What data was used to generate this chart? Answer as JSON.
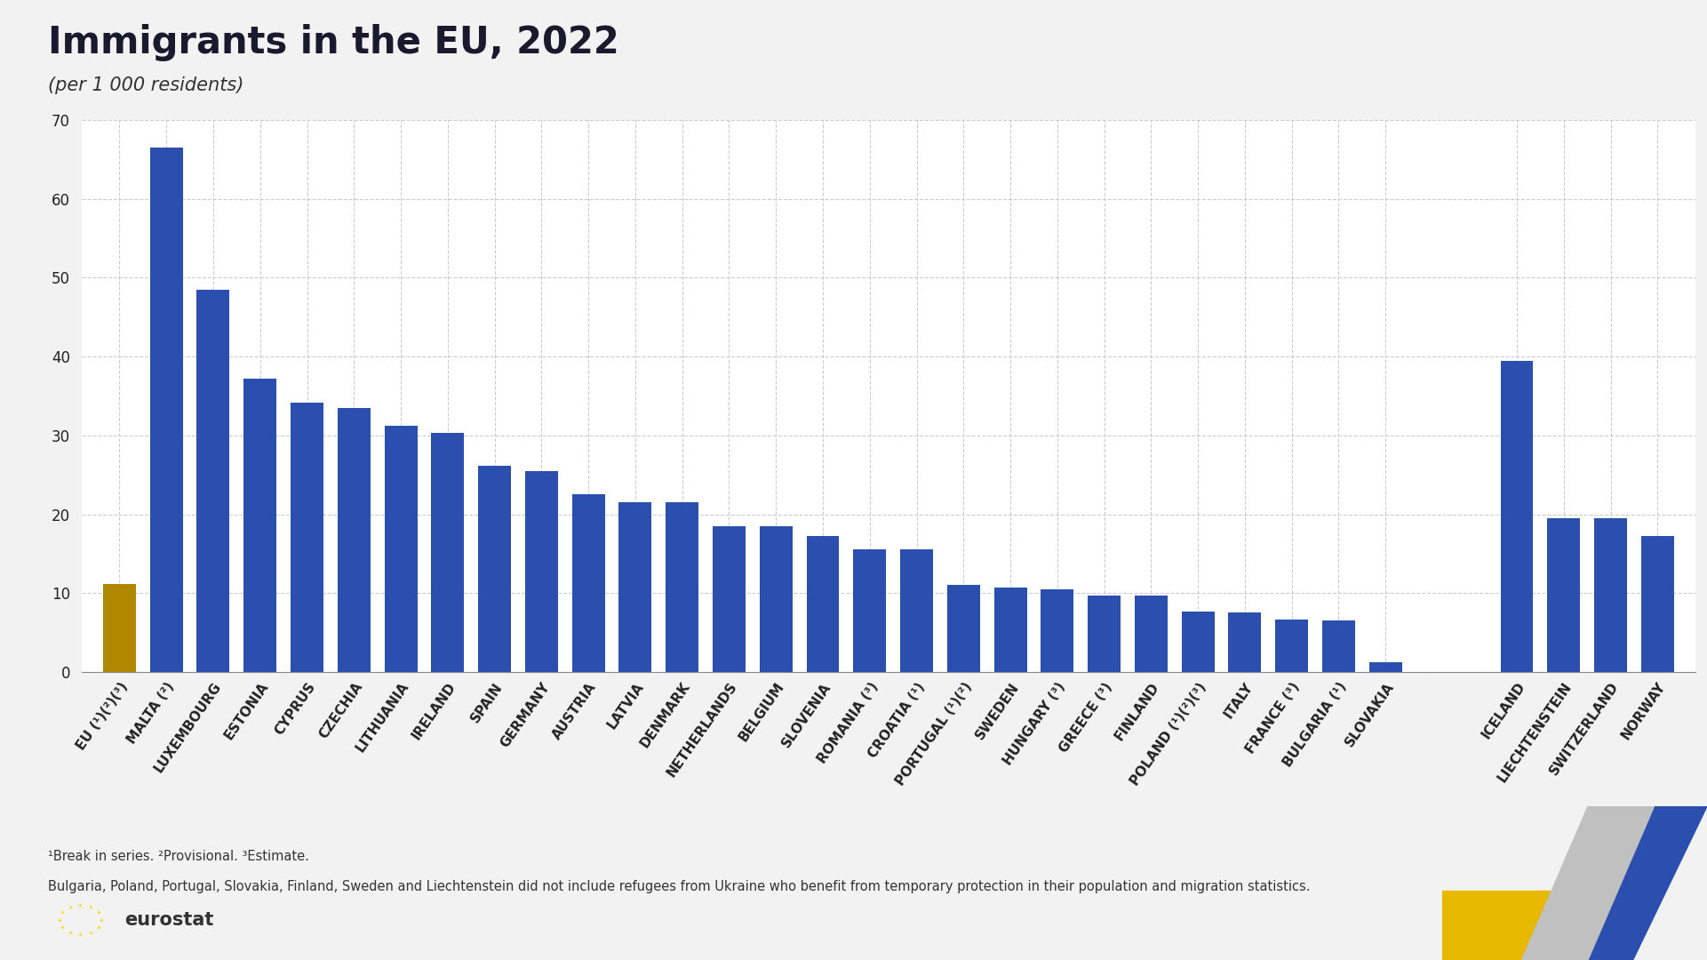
{
  "title": "Immigrants in the EU, 2022",
  "subtitle": "(per 1 000 residents)",
  "outer_bg": "#f2f2f2",
  "chart_bg": "#ffffff",
  "bar_color_blue": "#2b4faf",
  "bar_color_gold": "#b08800",
  "ylim": [
    0,
    70
  ],
  "yticks": [
    0,
    10,
    20,
    30,
    40,
    50,
    60,
    70
  ],
  "categories": [
    "EU (¹)(²)(³)",
    "MALTA (²)",
    "LUXEMBOURG",
    "ESTONIA",
    "CYPRUS",
    "CZECHIA",
    "LITHUANIA",
    "IRELAND",
    "SPAIN",
    "GERMANY",
    "AUSTRIA",
    "LATVIA",
    "DENMARK",
    "NETHERLANDS",
    "BELGIUM",
    "SLOVENIA",
    "ROMANIA (³)",
    "CROATIA (¹)",
    "PORTUGAL (¹)(²)",
    "SWEDEN",
    "HUNGARY (³)",
    "GREECE (³)",
    "FINLAND",
    "POLAND (¹)(²)(³)",
    "ITALY",
    "FRANCE (³)",
    "BULGARIA (¹)",
    "SLOVAKIA",
    "ICELAND",
    "LIECHTENSTEIN",
    "SWITZERLAND",
    "NORWAY"
  ],
  "values": [
    11.2,
    66.5,
    48.5,
    37.2,
    34.2,
    33.5,
    31.2,
    30.3,
    26.2,
    25.5,
    22.5,
    21.5,
    21.5,
    18.5,
    18.5,
    17.2,
    15.5,
    15.5,
    11.0,
    10.7,
    10.5,
    9.7,
    9.7,
    7.7,
    7.5,
    6.7,
    6.5,
    1.2,
    39.5,
    19.5,
    19.5,
    17.2
  ],
  "bar_colors": [
    "#b08800",
    "#2b4faf",
    "#2b4faf",
    "#2b4faf",
    "#2b4faf",
    "#2b4faf",
    "#2b4faf",
    "#2b4faf",
    "#2b4faf",
    "#2b4faf",
    "#2b4faf",
    "#2b4faf",
    "#2b4faf",
    "#2b4faf",
    "#2b4faf",
    "#2b4faf",
    "#2b4faf",
    "#2b4faf",
    "#2b4faf",
    "#2b4faf",
    "#2b4faf",
    "#2b4faf",
    "#2b4faf",
    "#2b4faf",
    "#2b4faf",
    "#2b4faf",
    "#2b4faf",
    "#2b4faf",
    "#2b4faf",
    "#2b4faf",
    "#2b4faf",
    "#2b4faf"
  ],
  "separator_after_index": 27,
  "footnote1": "¹Break in series. ²Provisional. ³Estimate.",
  "footnote2": "Bulgaria, Poland, Portugal, Slovakia, Finland, Sweden and Liechtenstein did not include refugees from Ukraine who benefit from temporary protection in their population and migration statistics.",
  "title_fontsize": 30,
  "subtitle_fontsize": 15,
  "tick_fontsize": 12,
  "label_fontsize": 11,
  "footnote_fontsize": 10.5
}
